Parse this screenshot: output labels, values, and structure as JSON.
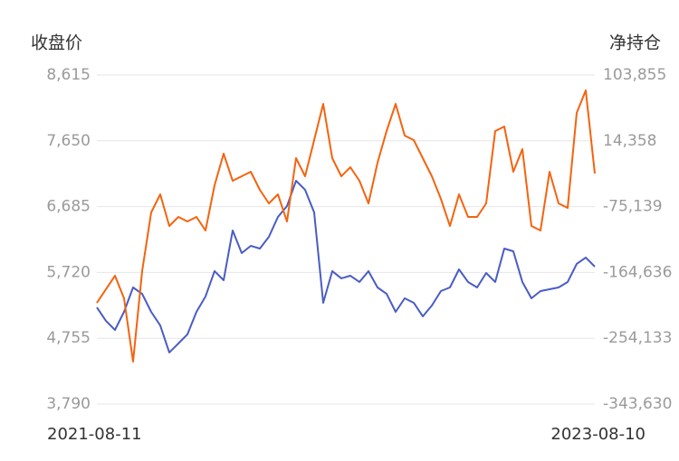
{
  "chart_data": {
    "type": "line",
    "y_label": "收盘价",
    "y2_label": "净持仓",
    "categories": [
      "2021-08-11",
      null,
      null,
      null,
      null,
      null,
      null,
      null,
      null,
      null,
      null,
      null,
      null,
      null,
      null,
      null,
      null,
      null,
      null,
      null,
      null,
      null,
      null,
      null,
      null,
      null,
      null,
      null,
      null,
      null,
      null,
      null,
      null,
      null,
      null,
      null,
      null,
      null,
      null,
      null,
      null,
      null,
      null,
      null,
      null,
      null,
      null,
      null,
      null,
      null,
      null,
      null,
      null,
      null,
      null,
      "2023-08-10"
    ],
    "series": [
      {
        "color": "#4a5cc4",
        "axis": "y",
        "values": [
          5208,
          5010,
          4877,
          5142,
          5500,
          5407,
          5142,
          4943,
          4546,
          4678,
          4811,
          5142,
          5368,
          5739,
          5606,
          6335,
          6004,
          6110,
          6070,
          6242,
          6534,
          6693,
          7064,
          6932,
          6600,
          5275,
          5739,
          5633,
          5672,
          5580,
          5739,
          5500,
          5407,
          5142,
          5341,
          5275,
          5076,
          5235,
          5447,
          5500,
          5765,
          5580,
          5500,
          5712,
          5580,
          6070,
          6030,
          5580,
          5341,
          5447,
          5474,
          5500,
          5580,
          5845,
          5938,
          5805
        ]
      },
      {
        "color": "#f4630f",
        "axis": "y2",
        "values": [
          -205954,
          -187513,
          -169072,
          -199807,
          -285865,
          -162925,
          -83014,
          -58426,
          -101455,
          -89161,
          -95308,
          -89161,
          -107602,
          -46132,
          -3103,
          -39985,
          -33838,
          -27691,
          -52279,
          -70720,
          -58426,
          -95308,
          -9250,
          -33838,
          15338,
          64514,
          -9250,
          -33838,
          -21544,
          -39985,
          -70720,
          -15397,
          27632,
          64514,
          21485,
          15338,
          -9250,
          -33838,
          -64573,
          -101455,
          -58426,
          -89161,
          -89161,
          -70720,
          27632,
          33779,
          -27691,
          3044,
          -101455,
          -107602,
          -27691,
          -70720,
          -76867,
          52220,
          82955,
          -30150
        ]
      }
    ],
    "ylim": [
      3790,
      8615
    ],
    "yticks": [
      {
        "value": 3790,
        "label": "3,790"
      },
      {
        "value": 4755,
        "label": "4,755"
      },
      {
        "value": 5720,
        "label": "5,720"
      },
      {
        "value": 6685,
        "label": "6,685"
      },
      {
        "value": 7650,
        "label": "7,650"
      },
      {
        "value": 8615,
        "label": "8,615"
      }
    ],
    "y2lim": [
      -343630,
      103855
    ],
    "y2ticks": [
      {
        "value": -343630,
        "label": "-343,630"
      },
      {
        "value": -254133,
        "label": "-254,133"
      },
      {
        "value": -164636,
        "label": "-164,636"
      },
      {
        "value": -75139,
        "label": "-75,139"
      },
      {
        "value": 14358,
        "label": "14,358"
      },
      {
        "value": 103855,
        "label": "103,855"
      }
    ],
    "grid": true
  }
}
